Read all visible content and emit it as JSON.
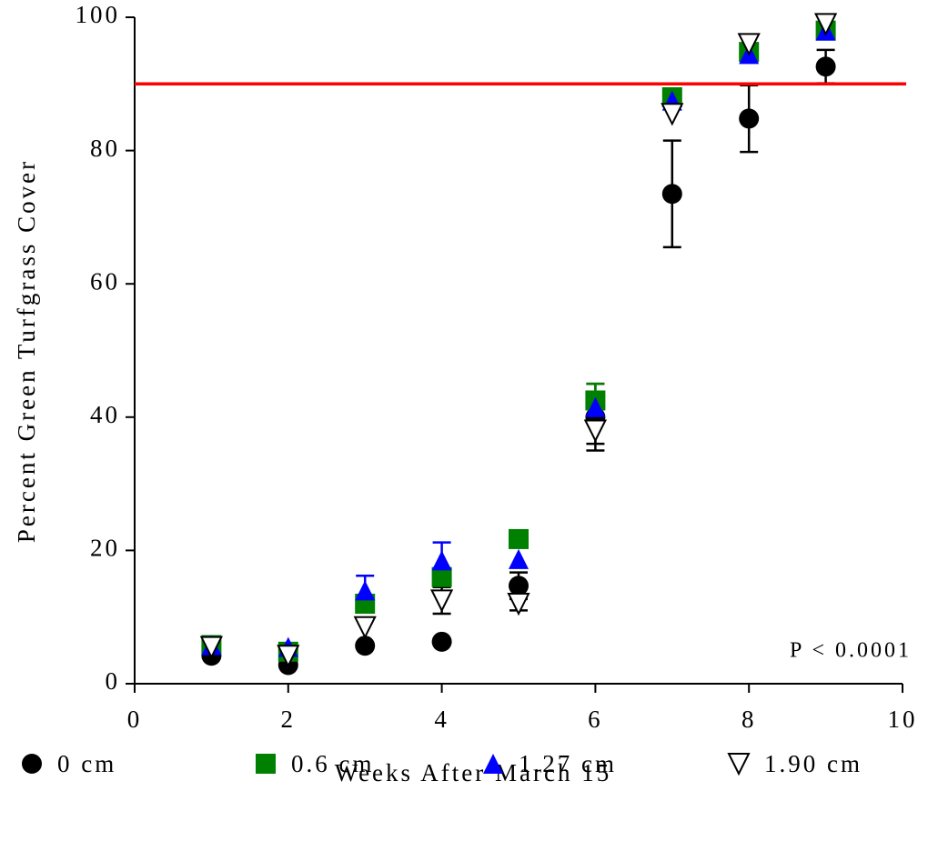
{
  "chart_data": {
    "type": "scatter",
    "xlabel": "Weeks After March 15",
    "ylabel": "Percent Green Turfgrass Cover",
    "annotation": "P < 0.0001",
    "x": [
      1,
      2,
      3,
      4,
      5,
      6,
      7,
      8,
      9
    ],
    "xlim": [
      0,
      10
    ],
    "xticks": [
      0,
      2,
      4,
      6,
      8,
      10
    ],
    "ylim": [
      0,
      100
    ],
    "yticks": [
      0,
      20,
      40,
      60,
      80,
      100
    ],
    "reference_line": {
      "y": 90,
      "color": "#ff0000"
    },
    "series": [
      {
        "name": "0 cm",
        "color": "#000000",
        "marker": "circle",
        "values": [
          4.2,
          2.8,
          5.7,
          6.3,
          14.7,
          40,
          73.5,
          84.8,
          92.6
        ],
        "errors": [
          null,
          null,
          null,
          null,
          2,
          5,
          8,
          5,
          2.5
        ]
      },
      {
        "name": "0.6 cm",
        "color": "#008000",
        "marker": "square",
        "values": [
          5.8,
          4.8,
          12,
          16,
          21.7,
          42.5,
          88,
          94.8,
          98
        ],
        "errors": [
          null,
          null,
          null,
          null,
          null,
          2.5,
          null,
          null,
          null
        ]
      },
      {
        "name": "1.27 cm",
        "color": "#0000ff",
        "marker": "triangle",
        "values": [
          5.8,
          5.5,
          14,
          18.5,
          18.7,
          41.5,
          87.5,
          94.5,
          98
        ],
        "errors": [
          null,
          null,
          2.2,
          2.7,
          null,
          2,
          null,
          null,
          null
        ]
      },
      {
        "name": "1.90 cm",
        "color": "#000000",
        "marker": "triangle-down-open",
        "values": [
          5.5,
          4.2,
          8.5,
          12.5,
          12,
          38,
          85.5,
          96,
          99
        ],
        "errors": [
          null,
          null,
          null,
          2,
          1,
          2,
          null,
          null,
          null
        ]
      }
    ]
  }
}
